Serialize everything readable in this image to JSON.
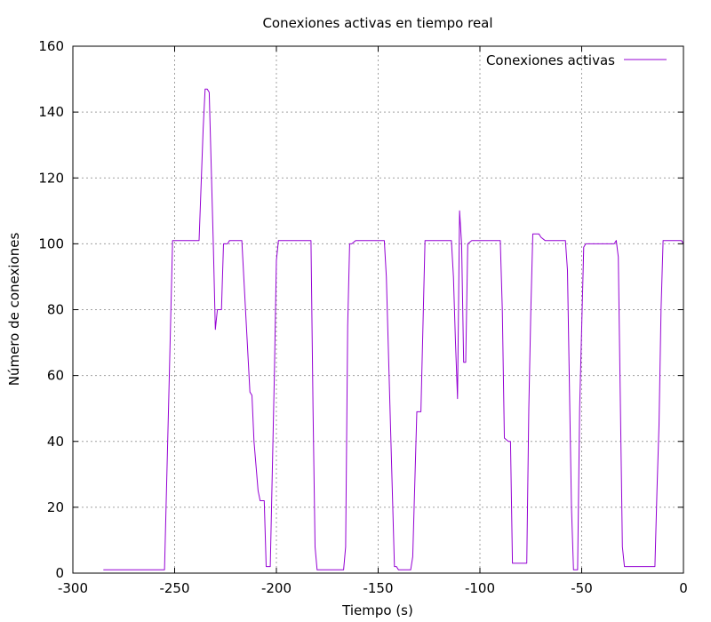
{
  "chart_data": {
    "type": "line",
    "title": "Conexiones activas en tiempo real",
    "xlabel": "Tiempo (s)",
    "ylabel": "Número de conexiones",
    "xlim": [
      -300,
      0
    ],
    "ylim": [
      0,
      160
    ],
    "xticks": [
      -300,
      -250,
      -200,
      -150,
      -100,
      -50,
      0
    ],
    "yticks": [
      0,
      20,
      40,
      60,
      80,
      100,
      120,
      140,
      160
    ],
    "grid": true,
    "legend_position": "top-right",
    "series": [
      {
        "name": "Conexiones activas",
        "color": "#9400d3",
        "points": [
          [
            -285,
            1
          ],
          [
            -255,
            1
          ],
          [
            -253,
            50
          ],
          [
            -251,
            101
          ],
          [
            -238,
            101
          ],
          [
            -236,
            135
          ],
          [
            -235,
            147
          ],
          [
            -234,
            147
          ],
          [
            -233,
            146
          ],
          [
            -231,
            100
          ],
          [
            -230,
            74
          ],
          [
            -229,
            80
          ],
          [
            -227,
            80
          ],
          [
            -226,
            100
          ],
          [
            -224,
            100
          ],
          [
            -223,
            101
          ],
          [
            -217,
            101
          ],
          [
            -213,
            55
          ],
          [
            -212,
            54
          ],
          [
            -211,
            40
          ],
          [
            -209,
            25
          ],
          [
            -208,
            22
          ],
          [
            -206,
            22
          ],
          [
            -205,
            2
          ],
          [
            -203,
            2
          ],
          [
            -201,
            60
          ],
          [
            -200,
            95
          ],
          [
            -199,
            101
          ],
          [
            -183,
            101
          ],
          [
            -182,
            50
          ],
          [
            -181,
            8
          ],
          [
            -180,
            1
          ],
          [
            -167,
            1
          ],
          [
            -166,
            8
          ],
          [
            -165,
            75
          ],
          [
            -164,
            100
          ],
          [
            -163,
            100
          ],
          [
            -161,
            101
          ],
          [
            -147,
            101
          ],
          [
            -146,
            90
          ],
          [
            -142,
            2
          ],
          [
            -141,
            2
          ],
          [
            -140,
            1
          ],
          [
            -134,
            1
          ],
          [
            -133,
            5
          ],
          [
            -131,
            49
          ],
          [
            -129,
            49
          ],
          [
            -127,
            101
          ],
          [
            -114,
            101
          ],
          [
            -113,
            90
          ],
          [
            -112,
            70
          ],
          [
            -111,
            53
          ],
          [
            -110,
            110
          ],
          [
            -109,
            100
          ],
          [
            -108,
            64
          ],
          [
            -107,
            64
          ],
          [
            -106,
            100
          ],
          [
            -104,
            101
          ],
          [
            -90,
            101
          ],
          [
            -89,
            80
          ],
          [
            -88,
            41
          ],
          [
            -86,
            40
          ],
          [
            -85,
            40
          ],
          [
            -84,
            3
          ],
          [
            -77,
            3
          ],
          [
            -76,
            50
          ],
          [
            -75,
            80
          ],
          [
            -74,
            103
          ],
          [
            -71,
            103
          ],
          [
            -70,
            102
          ],
          [
            -68,
            101
          ],
          [
            -58,
            101
          ],
          [
            -57,
            92
          ],
          [
            -55,
            20
          ],
          [
            -54,
            1
          ],
          [
            -52,
            1
          ],
          [
            -51,
            50
          ],
          [
            -49,
            99
          ],
          [
            -48,
            100
          ],
          [
            -34,
            100
          ],
          [
            -33,
            101
          ],
          [
            -32,
            96
          ],
          [
            -30,
            8
          ],
          [
            -29,
            2
          ],
          [
            -14,
            2
          ],
          [
            -13,
            25
          ],
          [
            -12,
            45
          ],
          [
            -11,
            80
          ],
          [
            -10,
            101
          ],
          [
            -1,
            101
          ],
          [
            0,
            100
          ]
        ]
      }
    ]
  }
}
